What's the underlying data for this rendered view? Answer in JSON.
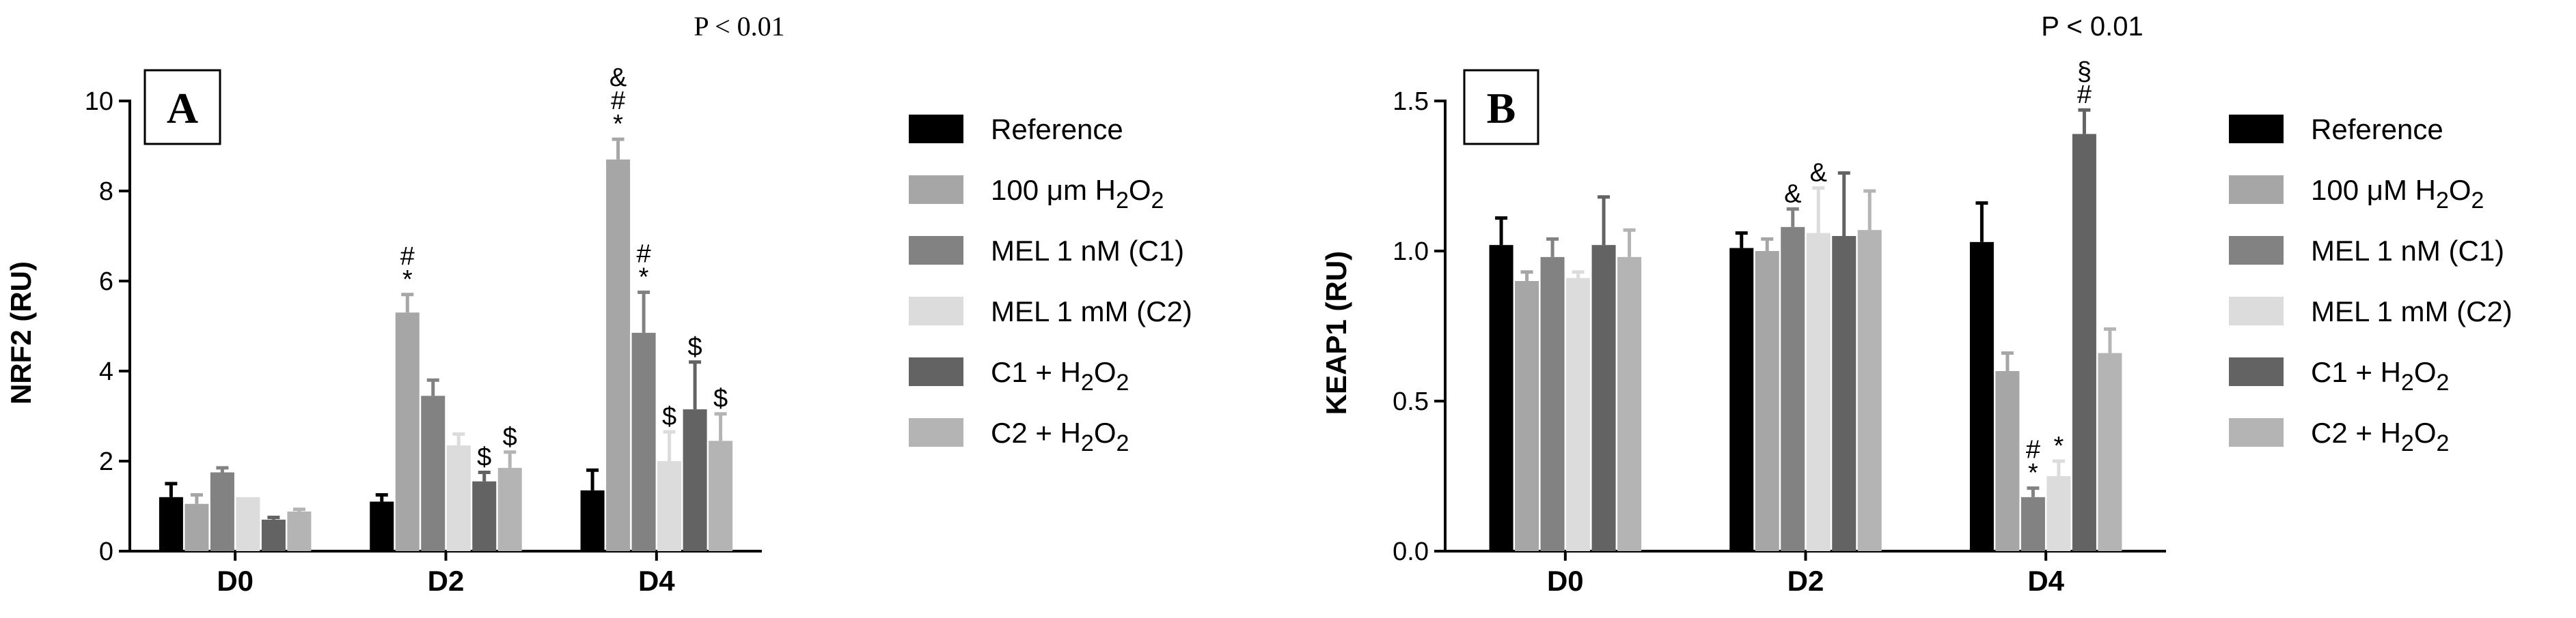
{
  "chart_data": [
    {
      "panel": "A",
      "type": "bar",
      "annotation": "P < 0.01",
      "xlabel": "",
      "ylabel": "NRF2 (RU)",
      "ylim": [
        0,
        10
      ],
      "yticks": [
        0,
        2,
        4,
        6,
        8,
        10
      ],
      "categories": [
        "D0",
        "D2",
        "D4"
      ],
      "series": [
        {
          "name": "Reference",
          "color": "#000000",
          "values": [
            1.2,
            1.1,
            1.35
          ],
          "errors": [
            0.3,
            0.15,
            0.45
          ],
          "markers": [
            "",
            "",
            ""
          ]
        },
        {
          "name": "100 μm H2O2",
          "color": "#a6a6a6",
          "values": [
            1.05,
            5.3,
            8.7
          ],
          "errors": [
            0.2,
            0.4,
            0.45
          ],
          "markers": [
            "",
            "#\n*",
            "&\n#\n*"
          ]
        },
        {
          "name": "MEL 1 nM (C1)",
          "color": "#828282",
          "values": [
            1.75,
            3.45,
            4.85
          ],
          "errors": [
            0.1,
            0.35,
            0.9
          ],
          "markers": [
            "",
            "",
            "#\n*"
          ]
        },
        {
          "name": "MEL 1 mM (C2)",
          "color": "#dcdcdc",
          "values": [
            1.2,
            2.35,
            2.0
          ],
          "errors": [
            0.0,
            0.25,
            0.65
          ],
          "markers": [
            "",
            "",
            "$"
          ]
        },
        {
          "name": "C1 + H2O2",
          "color": "#636363",
          "values": [
            0.7,
            1.55,
            3.15
          ],
          "errors": [
            0.05,
            0.2,
            1.05
          ],
          "markers": [
            "",
            "$",
            "$"
          ]
        },
        {
          "name": "C2 + H2O2",
          "color": "#b4b4b4",
          "values": [
            0.88,
            1.85,
            2.45
          ],
          "errors": [
            0.05,
            0.35,
            0.6
          ],
          "markers": [
            "",
            "$",
            "$"
          ]
        }
      ]
    },
    {
      "panel": "B",
      "type": "bar",
      "annotation": "P < 0.01",
      "xlabel": "",
      "ylabel": "KEAP1 (RU)",
      "ylim": [
        0,
        1.5
      ],
      "yticks": [
        0.0,
        0.5,
        1.0,
        1.5
      ],
      "categories": [
        "D0",
        "D2",
        "D4"
      ],
      "series": [
        {
          "name": "Reference",
          "color": "#000000",
          "values": [
            1.02,
            1.01,
            1.03
          ],
          "errors": [
            0.09,
            0.05,
            0.13
          ],
          "markers": [
            "",
            "",
            ""
          ]
        },
        {
          "name": "100 μM H2O2",
          "color": "#a6a6a6",
          "values": [
            0.9,
            1.0,
            0.6
          ],
          "errors": [
            0.03,
            0.04,
            0.06
          ],
          "markers": [
            "",
            "",
            ""
          ]
        },
        {
          "name": "MEL 1 nM (C1)",
          "color": "#828282",
          "values": [
            0.98,
            1.08,
            0.18
          ],
          "errors": [
            0.06,
            0.06,
            0.03
          ],
          "markers": [
            "",
            "&",
            "#\n*"
          ]
        },
        {
          "name": "MEL 1 mM (C2)",
          "color": "#dcdcdc",
          "values": [
            0.91,
            1.06,
            0.25
          ],
          "errors": [
            0.02,
            0.15,
            0.05
          ],
          "markers": [
            "",
            "&",
            "*"
          ]
        },
        {
          "name": "C1 + H2O2",
          "color": "#636363",
          "values": [
            1.02,
            1.05,
            1.39
          ],
          "errors": [
            0.16,
            0.21,
            0.08
          ],
          "markers": [
            "",
            "",
            "§\n#"
          ]
        },
        {
          "name": "C2 + H2O2",
          "color": "#b4b4b4",
          "values": [
            0.98,
            1.07,
            0.66
          ],
          "errors": [
            0.09,
            0.13,
            0.08
          ],
          "markers": [
            "",
            "",
            ""
          ]
        }
      ]
    }
  ]
}
